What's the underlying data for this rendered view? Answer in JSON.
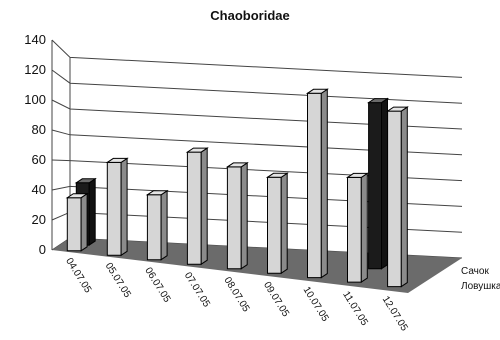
{
  "chart_data": {
    "type": "bar",
    "title": "Chaoboridae",
    "xlabel": "",
    "ylabel": "",
    "ylim": [
      0,
      140
    ],
    "yticks": [
      "0",
      "20",
      "40",
      "60",
      "80",
      "100",
      "120",
      "140"
    ],
    "categories": [
      "04.07.05",
      "05.07.05",
      "06.07.05",
      "07.07.05",
      "08.07.05",
      "09.07.05",
      "10.07.05",
      "11.07.05",
      "12.07.05"
    ],
    "series": [
      {
        "name": "Сачок",
        "values": [
          0,
          0,
          0,
          0,
          0,
          0,
          0,
          0,
          0
        ]
      },
      {
        "name": "Ловушка",
        "values": [
          36,
          63,
          44,
          76,
          69,
          65,
          125,
          71,
          119
        ]
      },
      {
        "name": "",
        "values": [
          45,
          0,
          0,
          0,
          0,
          0,
          0,
          120,
          0
        ]
      }
    ],
    "colors": {
      "bar_light": "#d6d6d6",
      "bar_dark": "#1b1b1b",
      "floor": "#6b6b6b",
      "grid": "#444444"
    },
    "grid": true,
    "legend_position": "bottom-right",
    "chart_3d": true
  }
}
